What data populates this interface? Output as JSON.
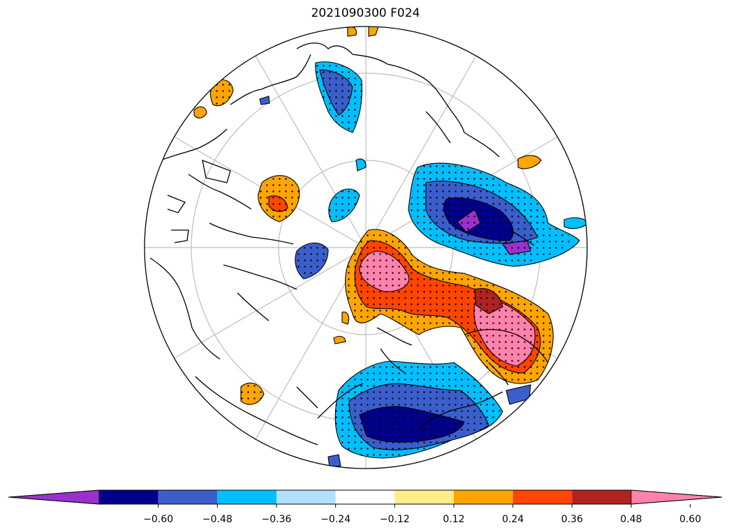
{
  "title": "2021090300 F024",
  "colorbar": {
    "levels": [
      "-0.60",
      "-0.48",
      "-0.36",
      "-0.24",
      "-0.12",
      "0.12",
      "0.24",
      "0.36",
      "0.48",
      "0.60"
    ],
    "colors": [
      "#9932cc",
      "#00008b",
      "#3a5fcd",
      "#00bfff",
      "#b0e2ff",
      "#ffffff",
      "#ffec8b",
      "#ffa500",
      "#ff4500",
      "#b22222",
      "#ff82ab"
    ],
    "extend": "both"
  },
  "map": {
    "projection": "north-polar-stereographic",
    "graticule": true,
    "stippling": true
  }
}
